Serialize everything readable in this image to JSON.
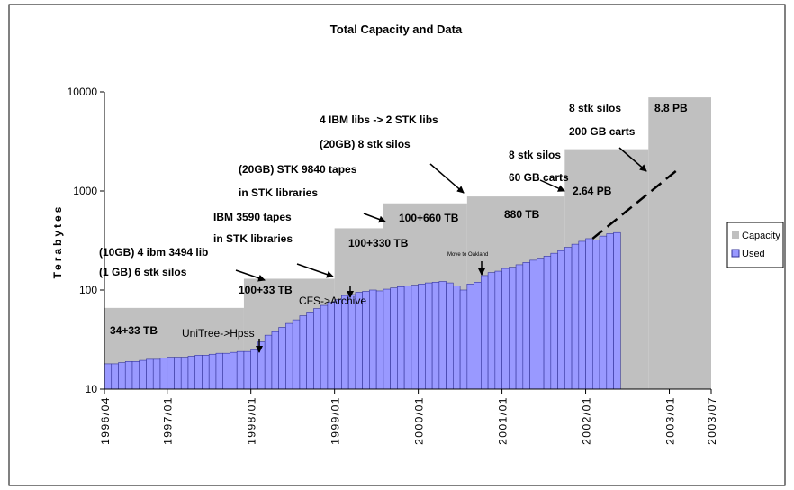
{
  "chart_data": {
    "type": "bar",
    "title": "Total Capacity and Data",
    "ylabel": "Terabytes",
    "log_scale": true,
    "ylim": [
      10,
      10000
    ],
    "yticks": [
      10,
      100,
      1000,
      10000
    ],
    "xlim": [
      "1996/04",
      "2003/07"
    ],
    "xticks": [
      "1996/04",
      "1997/01",
      "1998/01",
      "1999/01",
      "2000/01",
      "2001/01",
      "2002/01",
      "2003/01",
      "2003/07"
    ],
    "legend": "right",
    "capacity": {
      "name": "Capacity",
      "color": "#c0c0c0",
      "x": [
        "1996/04",
        "1997/12",
        "1999/01",
        "1999/08",
        "2000/08",
        "2001/10",
        "2002/10"
      ],
      "values": [
        66,
        130,
        420,
        750,
        880,
        2640,
        8800
      ]
    },
    "series": [
      {
        "name": "Used",
        "color": "#9999ff",
        "x": [
          "1996/04",
          "1996/05",
          "1996/06",
          "1996/07",
          "1996/08",
          "1996/09",
          "1996/10",
          "1996/11",
          "1996/12",
          "1997/01",
          "1997/02",
          "1997/03",
          "1997/04",
          "1997/05",
          "1997/06",
          "1997/07",
          "1997/08",
          "1997/09",
          "1997/10",
          "1997/11",
          "1997/12",
          "1998/01",
          "1998/02",
          "1998/03",
          "1998/04",
          "1998/05",
          "1998/06",
          "1998/07",
          "1998/08",
          "1998/09",
          "1998/10",
          "1998/11",
          "1998/12",
          "1999/01",
          "1999/02",
          "1999/03",
          "1999/04",
          "1999/05",
          "1999/06",
          "1999/07",
          "1999/08",
          "1999/09",
          "1999/10",
          "1999/11",
          "1999/12",
          "2000/01",
          "2000/02",
          "2000/03",
          "2000/04",
          "2000/05",
          "2000/06",
          "2000/07",
          "2000/08",
          "2000/09",
          "2000/10",
          "2000/11",
          "2000/12",
          "2001/01",
          "2001/02",
          "2001/03",
          "2001/04",
          "2001/05",
          "2001/06",
          "2001/07",
          "2001/08",
          "2001/09",
          "2001/10",
          "2001/11",
          "2001/12",
          "2002/01",
          "2002/02",
          "2002/03",
          "2002/04",
          "2002/05"
        ],
        "values": [
          18,
          18,
          18.5,
          19,
          19,
          19.5,
          20,
          20,
          20.5,
          21,
          21,
          21,
          21.5,
          22,
          22,
          22.5,
          23,
          23,
          23.5,
          24,
          24,
          25,
          30,
          35,
          38,
          42,
          46,
          50,
          55,
          60,
          65,
          70,
          75,
          80,
          88,
          90,
          95,
          97,
          100,
          98,
          102,
          105,
          108,
          110,
          112,
          115,
          118,
          120,
          122,
          118,
          110,
          100,
          115,
          120,
          140,
          150,
          155,
          165,
          170,
          180,
          190,
          200,
          210,
          220,
          235,
          250,
          270,
          290,
          310,
          330,
          320,
          350,
          370,
          380
        ]
      }
    ],
    "trend": {
      "x": [
        "2002/02",
        "2003/02"
      ],
      "values": [
        330,
        1600
      ]
    },
    "annotations": [
      "34+33  TB",
      "UniTree->Hpss",
      "(10GB) 4 ibm 3494 lib",
      "(1 GB) 6 stk silos",
      "100+33  TB",
      "CFS->Archive",
      "IBM 3590 tapes",
      "in STK libraries",
      "(20GB) STK 9840 tapes",
      "in STK libraries",
      "100+330 TB",
      "4 IBM libs -> 2 STK libs",
      "(20GB) 8  stk silos",
      "100+660 TB",
      "880 TB",
      "8 stk silos",
      "60 GB carts",
      "2.64  PB",
      "8 stk silos",
      "200 GB carts",
      "8.8 PB",
      "Move to Oakland"
    ]
  }
}
